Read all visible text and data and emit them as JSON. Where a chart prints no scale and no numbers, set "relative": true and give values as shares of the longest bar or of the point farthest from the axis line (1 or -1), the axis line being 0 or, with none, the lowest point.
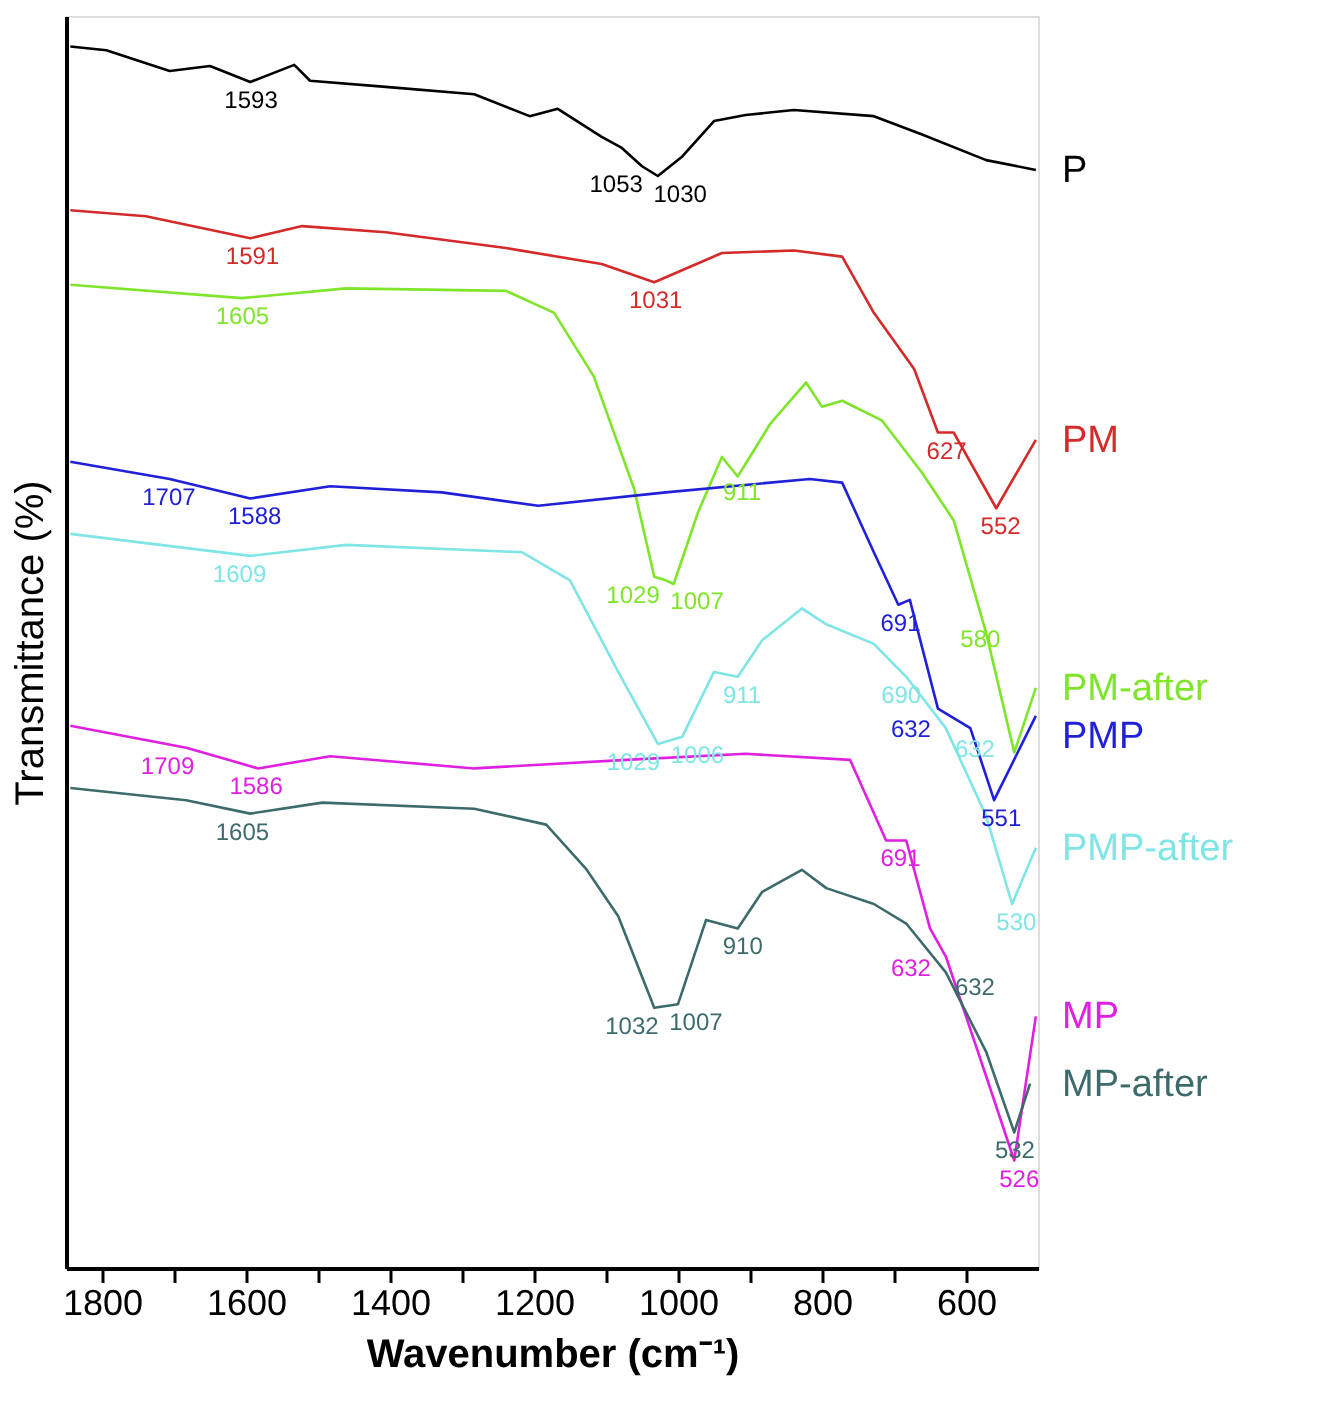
{
  "chart_data": {
    "type": "line",
    "relative": true,
    "xlabel": "Wavenumber (cm⁻¹)",
    "ylabel": "Transmittance (%)",
    "xlim": [
      1850,
      500
    ],
    "xticks": [
      {
        "value": 1800,
        "label": "1800"
      },
      {
        "value": 1700,
        "label": null
      },
      {
        "value": 1600,
        "label": "1600"
      },
      {
        "value": 1500,
        "label": null
      },
      {
        "value": 1400,
        "label": "1400"
      },
      {
        "value": 1300,
        "label": null
      },
      {
        "value": 1200,
        "label": "1200"
      },
      {
        "value": 1100,
        "label": null
      },
      {
        "value": 1000,
        "label": "1000"
      },
      {
        "value": 900,
        "label": null
      },
      {
        "value": 800,
        "label": "800"
      },
      {
        "value": 700,
        "label": null
      },
      {
        "value": 600,
        "label": "600"
      }
    ],
    "grid": false,
    "legend": false,
    "marker": "none",
    "line_style": "solid",
    "series": [
      {
        "name": "P",
        "color": "#000000",
        "x": [
          1844,
          1794,
          1706,
          1650,
          1594,
          1533,
          1511,
          1406,
          1283,
          1206,
          1167,
          1106,
          1078,
          1050,
          1028,
          994,
          950,
          906,
          839,
          728,
          661,
          572,
          503
        ],
        "values": [
          1.0,
          0.997,
          0.98,
          0.984,
          0.971,
          0.985,
          0.972,
          0.967,
          0.961,
          0.943,
          0.949,
          0.926,
          0.917,
          0.902,
          0.894,
          0.91,
          0.939,
          0.944,
          0.948,
          0.943,
          0.928,
          0.907,
          0.899
        ]
      },
      {
        "name": "PM",
        "color": "#d42a2a",
        "x": [
          1844,
          1739,
          1594,
          1522,
          1406,
          1239,
          1106,
          1033,
          939,
          839,
          772,
          728,
          672,
          639,
          617,
          558,
          503
        ],
        "values": [
          0.866,
          0.861,
          0.843,
          0.853,
          0.848,
          0.835,
          0.822,
          0.807,
          0.831,
          0.833,
          0.828,
          0.782,
          0.736,
          0.684,
          0.684,
          0.622,
          0.678
        ]
      },
      {
        "name": "PM-after",
        "color": "#7fe52a",
        "x": [
          1844,
          1606,
          1461,
          1239,
          1172,
          1117,
          1061,
          1033,
          1017,
          1006,
          972,
          939,
          917,
          872,
          822,
          800,
          772,
          717,
          661,
          617,
          572,
          533,
          503
        ],
        "values": [
          0.805,
          0.794,
          0.802,
          0.8,
          0.782,
          0.73,
          0.638,
          0.566,
          0.563,
          0.56,
          0.619,
          0.664,
          0.648,
          0.691,
          0.725,
          0.705,
          0.71,
          0.694,
          0.651,
          0.612,
          0.52,
          0.422,
          0.475
        ]
      },
      {
        "name": "PMP",
        "color": "#2020d8",
        "x": [
          1844,
          1706,
          1594,
          1483,
          1328,
          1194,
          1017,
          817,
          772,
          728,
          694,
          678,
          639,
          594,
          561,
          503
        ],
        "values": [
          0.66,
          0.646,
          0.63,
          0.64,
          0.635,
          0.624,
          0.635,
          0.646,
          0.643,
          0.586,
          0.543,
          0.547,
          0.458,
          0.442,
          0.383,
          0.452
        ]
      },
      {
        "name": "PMP-after",
        "color": "#7fe5e5",
        "x": [
          1844,
          1594,
          1461,
          1217,
          1150,
          1083,
          1028,
          994,
          950,
          917,
          883,
          828,
          794,
          728,
          683,
          628,
          572,
          536,
          503
        ],
        "values": [
          0.601,
          0.583,
          0.592,
          0.586,
          0.563,
          0.488,
          0.429,
          0.435,
          0.488,
          0.484,
          0.514,
          0.54,
          0.527,
          0.511,
          0.484,
          0.442,
          0.37,
          0.298,
          0.344
        ]
      },
      {
        "name": "MP",
        "color": "#e020e0",
        "x": [
          1844,
          1683,
          1583,
          1483,
          1283,
          1072,
          906,
          761,
          711,
          683,
          650,
          628,
          572,
          533,
          503
        ],
        "values": [
          0.444,
          0.426,
          0.409,
          0.419,
          0.409,
          0.416,
          0.421,
          0.416,
          0.35,
          0.35,
          0.278,
          0.255,
          0.157,
          0.088,
          0.206
        ]
      },
      {
        "name": "MP-after",
        "color": "#3d6b6b",
        "x": [
          1844,
          1683,
          1594,
          1494,
          1283,
          1183,
          1128,
          1083,
          1033,
          1000,
          961,
          917,
          883,
          828,
          794,
          728,
          683,
          628,
          572,
          533,
          511
        ],
        "values": [
          0.393,
          0.383,
          0.372,
          0.381,
          0.376,
          0.363,
          0.327,
          0.288,
          0.213,
          0.216,
          0.285,
          0.278,
          0.308,
          0.326,
          0.311,
          0.298,
          0.282,
          0.242,
          0.177,
          0.111,
          0.151
        ]
      }
    ],
    "annotations": [
      {
        "text": "1593",
        "x": 1593,
        "y": 0.971
      },
      {
        "text": "1053",
        "x": 1053,
        "y": 0.902
      },
      {
        "text": "1030",
        "x": 1030,
        "y": 0.894
      },
      {
        "text": "1591",
        "x": 1591,
        "y": 0.843
      },
      {
        "text": "1031",
        "x": 1031,
        "y": 0.807
      },
      {
        "text": "627",
        "x": 627,
        "y": 0.684
      },
      {
        "text": "552",
        "x": 552,
        "y": 0.622
      },
      {
        "text": "1605",
        "x": 1605,
        "y": 0.794
      },
      {
        "text": "1029",
        "x": 1029,
        "y": 0.566
      },
      {
        "text": "1007",
        "x": 1007,
        "y": 0.561
      },
      {
        "text": "911",
        "x": 911,
        "y": 0.65
      },
      {
        "text": "580",
        "x": 580,
        "y": 0.53
      },
      {
        "text": "1707",
        "x": 1707,
        "y": 0.646
      },
      {
        "text": "1588",
        "x": 1588,
        "y": 0.63
      },
      {
        "text": "691",
        "x": 691,
        "y": 0.543
      },
      {
        "text": "632",
        "x": 632,
        "y": 0.456
      },
      {
        "text": "551",
        "x": 551,
        "y": 0.383
      },
      {
        "text": "1609",
        "x": 1609,
        "y": 0.583
      },
      {
        "text": "1029",
        "x": 1029,
        "y": 0.429
      },
      {
        "text": "1006",
        "x": 1006,
        "y": 0.435
      },
      {
        "text": "911",
        "x": 911,
        "y": 0.484
      },
      {
        "text": "690",
        "x": 690,
        "y": 0.484
      },
      {
        "text": "632",
        "x": 632,
        "y": 0.44
      },
      {
        "text": "530",
        "x": 530,
        "y": 0.298
      },
      {
        "text": "1709",
        "x": 1709,
        "y": 0.426
      },
      {
        "text": "1586",
        "x": 1586,
        "y": 0.409
      },
      {
        "text": "691",
        "x": 691,
        "y": 0.35
      },
      {
        "text": "632",
        "x": 632,
        "y": 0.26
      },
      {
        "text": "526",
        "x": 526,
        "y": 0.088
      },
      {
        "text": "1605",
        "x": 1605,
        "y": 0.372
      },
      {
        "text": "1032",
        "x": 1032,
        "y": 0.213
      },
      {
        "text": "1007",
        "x": 1007,
        "y": 0.216
      },
      {
        "text": "910",
        "x": 910,
        "y": 0.278
      },
      {
        "text": "632",
        "x": 632,
        "y": 0.245
      },
      {
        "text": "532",
        "x": 532,
        "y": 0.111
      }
    ]
  }
}
